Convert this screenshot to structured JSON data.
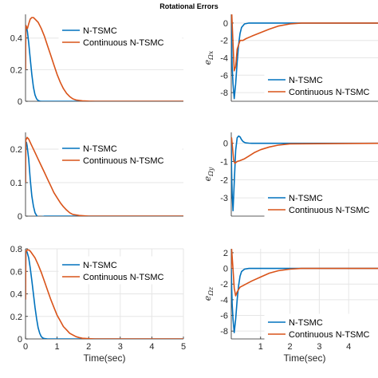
{
  "figure_title": "Rotational Errors",
  "colors": {
    "ntsmc": "#0072BD",
    "continuous": "#D95319",
    "grid": "#E6E6E6",
    "axis": "#262626"
  },
  "chart_data": [
    {
      "type": "line",
      "id": "r1c1",
      "xlim": [
        0,
        5
      ],
      "ylim": [
        0,
        0.55
      ],
      "xticks": [],
      "yticks": [
        0,
        0.2,
        0.4
      ],
      "xlabel": "",
      "ylabel": "",
      "grid": true,
      "legend_position": "top-center",
      "series": [
        {
          "name": "N-TSMC",
          "color": "#0072BD",
          "x": [
            0,
            0.01,
            0.03,
            0.06,
            0.1,
            0.15,
            0.2,
            0.25,
            0.3,
            0.35,
            0.4,
            0.45,
            0.5,
            0.6,
            0.8,
            1.0,
            1.5,
            5
          ],
          "y": [
            0.2,
            0.48,
            0.47,
            0.44,
            0.37,
            0.27,
            0.17,
            0.09,
            0.04,
            0.015,
            0.005,
            0.001,
            0,
            0,
            0,
            0,
            0,
            0
          ]
        },
        {
          "name": "Continuous N-TSMC",
          "color": "#D95319",
          "x": [
            0,
            0.01,
            0.03,
            0.06,
            0.1,
            0.15,
            0.2,
            0.25,
            0.3,
            0.4,
            0.5,
            0.6,
            0.7,
            0.8,
            0.9,
            1.0,
            1.1,
            1.2,
            1.3,
            1.4,
            1.5,
            1.6,
            1.8,
            2.0,
            2.2,
            5
          ],
          "y": [
            0.2,
            0.48,
            0.47,
            0.46,
            0.49,
            0.52,
            0.53,
            0.53,
            0.52,
            0.5,
            0.46,
            0.41,
            0.35,
            0.29,
            0.23,
            0.17,
            0.12,
            0.08,
            0.05,
            0.03,
            0.015,
            0.008,
            0.003,
            0.001,
            0,
            0
          ]
        }
      ]
    },
    {
      "type": "line",
      "id": "r1c2",
      "xlim": [
        0,
        5
      ],
      "ylim": [
        -9,
        1
      ],
      "xticks": [],
      "yticks": [
        -8,
        -6,
        -4,
        -2,
        0
      ],
      "xlabel": "",
      "ylabel": "eΩx",
      "grid": true,
      "legend_position": "bottom-right",
      "series": [
        {
          "name": "N-TSMC",
          "color": "#0072BD",
          "x": [
            0,
            0.01,
            0.03,
            0.06,
            0.1,
            0.15,
            0.2,
            0.25,
            0.3,
            0.35,
            0.45,
            0.6,
            0.8,
            1.0,
            5
          ],
          "y": [
            0,
            -2,
            -5,
            -7,
            -8.7,
            -7,
            -4.5,
            -2.5,
            -1.2,
            -0.5,
            -0.1,
            0,
            0,
            0,
            0
          ]
        },
        {
          "name": "Continuous N-TSMC",
          "color": "#D95319",
          "x": [
            0,
            0.01,
            0.05,
            0.1,
            0.15,
            0.2,
            0.3,
            0.4,
            0.5,
            0.7,
            1.0,
            1.3,
            1.6,
            2.0,
            2.4,
            5
          ],
          "y": [
            0,
            1.5,
            -1.5,
            -5.5,
            -5.0,
            -3.0,
            -2.0,
            -2.0,
            -1.8,
            -1.5,
            -1.1,
            -0.7,
            -0.35,
            -0.1,
            0,
            0
          ]
        }
      ]
    },
    {
      "type": "line",
      "id": "r2c1",
      "xlim": [
        0,
        5
      ],
      "ylim": [
        0,
        0.25
      ],
      "xticks": [],
      "yticks": [
        0,
        0.1,
        0.2
      ],
      "xlabel": "",
      "ylabel": "",
      "grid": true,
      "legend_position": "top-center",
      "series": [
        {
          "name": "N-TSMC",
          "color": "#0072BD",
          "x": [
            0,
            0.01,
            0.03,
            0.05,
            0.1,
            0.15,
            0.2,
            0.25,
            0.3,
            0.35,
            0.4,
            0.5,
            0.6,
            0.8,
            1.0,
            5
          ],
          "y": [
            0.1,
            0.22,
            0.22,
            0.21,
            0.17,
            0.11,
            0.06,
            0.03,
            0.01,
            0.002,
            -0.003,
            -0.002,
            0,
            0,
            0,
            0
          ]
        },
        {
          "name": "Continuous N-TSMC",
          "color": "#D95319",
          "x": [
            0,
            0.01,
            0.03,
            0.05,
            0.1,
            0.15,
            0.2,
            0.3,
            0.4,
            0.5,
            0.6,
            0.7,
            0.8,
            0.9,
            1.0,
            1.1,
            1.2,
            1.3,
            1.4,
            1.5,
            1.7,
            2.0,
            5
          ],
          "y": [
            0.1,
            0.23,
            0.23,
            0.235,
            0.23,
            0.22,
            0.21,
            0.19,
            0.17,
            0.15,
            0.13,
            0.11,
            0.09,
            0.07,
            0.055,
            0.04,
            0.028,
            0.018,
            0.01,
            0.005,
            0.002,
            0,
            0
          ]
        }
      ]
    },
    {
      "type": "line",
      "id": "r2c2",
      "xlim": [
        0,
        5
      ],
      "ylim": [
        -4,
        0.6
      ],
      "xticks": [],
      "yticks": [
        -3,
        -2,
        -1,
        0
      ],
      "xlabel": "",
      "ylabel": "eΩy",
      "grid": true,
      "legend_position": "bottom-right",
      "series": [
        {
          "name": "N-TSMC",
          "color": "#0072BD",
          "x": [
            0,
            0.01,
            0.03,
            0.06,
            0.1,
            0.15,
            0.2,
            0.25,
            0.3,
            0.35,
            0.4,
            0.45,
            0.5,
            0.6,
            0.7,
            0.8,
            1.0,
            5
          ],
          "y": [
            0,
            -1.5,
            -2.8,
            -3.7,
            -2.2,
            -0.4,
            0.3,
            0.4,
            0.35,
            0.2,
            0.1,
            0.05,
            0.02,
            0.01,
            0,
            0,
            0,
            0
          ]
        },
        {
          "name": "Continuous N-TSMC",
          "color": "#D95319",
          "x": [
            0,
            0.01,
            0.04,
            0.08,
            0.12,
            0.16,
            0.2,
            0.3,
            0.45,
            0.6,
            0.8,
            1.0,
            1.3,
            1.6,
            2.0,
            5
          ],
          "y": [
            0,
            0.3,
            -0.2,
            -0.9,
            -1.1,
            -1.05,
            -1.0,
            -0.95,
            -0.85,
            -0.7,
            -0.5,
            -0.35,
            -0.2,
            -0.1,
            -0.03,
            0
          ]
        }
      ]
    },
    {
      "type": "line",
      "id": "r3c1",
      "xlim": [
        0,
        5
      ],
      "ylim": [
        0,
        0.8
      ],
      "xticks": [
        0,
        1,
        2,
        3,
        4,
        5
      ],
      "yticks": [
        0,
        0.2,
        0.4,
        0.6,
        0.8
      ],
      "xlabel": "Time(sec)",
      "ylabel": "",
      "grid": true,
      "legend_position": "top-right",
      "series": [
        {
          "name": "N-TSMC",
          "color": "#0072BD",
          "x": [
            0,
            0.01,
            0.03,
            0.05,
            0.1,
            0.15,
            0.2,
            0.25,
            0.3,
            0.35,
            0.4,
            0.45,
            0.5,
            0.55,
            0.6,
            0.7,
            0.8,
            1.0,
            5
          ],
          "y": [
            0.35,
            0.78,
            0.78,
            0.77,
            0.72,
            0.63,
            0.52,
            0.4,
            0.28,
            0.18,
            0.1,
            0.05,
            0.02,
            0.008,
            0.003,
            0,
            0,
            0,
            0
          ]
        },
        {
          "name": "Continuous N-TSMC",
          "color": "#D95319",
          "x": [
            0,
            0.01,
            0.03,
            0.05,
            0.1,
            0.15,
            0.2,
            0.3,
            0.4,
            0.5,
            0.6,
            0.7,
            0.8,
            0.9,
            1.0,
            1.1,
            1.2,
            1.3,
            1.4,
            1.5,
            1.6,
            1.7,
            1.8,
            2.0,
            2.2,
            5
          ],
          "y": [
            0.35,
            0.78,
            0.78,
            0.79,
            0.79,
            0.78,
            0.76,
            0.72,
            0.66,
            0.59,
            0.51,
            0.43,
            0.35,
            0.28,
            0.21,
            0.16,
            0.11,
            0.08,
            0.05,
            0.035,
            0.02,
            0.012,
            0.006,
            0.002,
            0,
            0
          ]
        }
      ]
    },
    {
      "type": "line",
      "id": "r3c2",
      "xlim": [
        0,
        5
      ],
      "ylim": [
        -9,
        2.5
      ],
      "xticks": [
        1,
        2,
        3,
        4
      ],
      "yticks": [
        -8,
        -6,
        -4,
        -2,
        0,
        2
      ],
      "xlabel": "Time(sec)",
      "ylabel": "eΩz",
      "grid": true,
      "legend_position": "bottom-right",
      "series": [
        {
          "name": "N-TSMC",
          "color": "#0072BD",
          "x": [
            0,
            0.01,
            0.03,
            0.06,
            0.1,
            0.15,
            0.2,
            0.25,
            0.3,
            0.35,
            0.45,
            0.6,
            0.8,
            1.0,
            5
          ],
          "y": [
            0,
            -2,
            -4.5,
            -6.5,
            -8.2,
            -6.5,
            -4,
            -2.2,
            -1.0,
            -0.4,
            -0.1,
            0,
            0,
            0,
            0
          ]
        },
        {
          "name": "Continuous N-TSMC",
          "color": "#D95319",
          "x": [
            0,
            0.01,
            0.05,
            0.1,
            0.15,
            0.2,
            0.3,
            0.4,
            0.5,
            0.7,
            1.0,
            1.3,
            1.6,
            2.0,
            2.4,
            5
          ],
          "y": [
            0,
            2.5,
            0.5,
            -2.5,
            -3.5,
            -3.0,
            -2.4,
            -2.2,
            -2.0,
            -1.6,
            -1.1,
            -0.6,
            -0.3,
            -0.1,
            0,
            0
          ]
        }
      ]
    }
  ]
}
